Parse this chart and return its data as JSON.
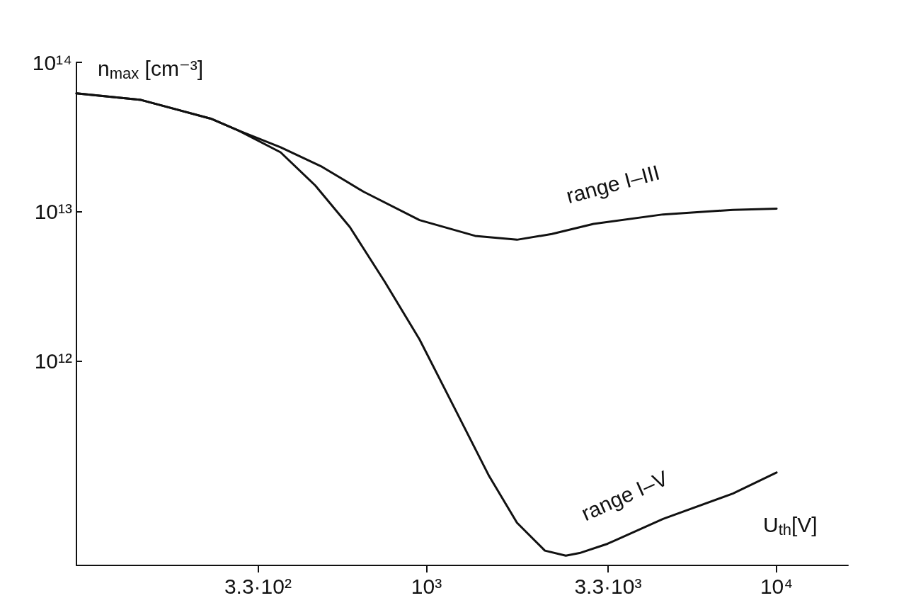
{
  "chart_data": {
    "type": "line",
    "xlabel": "U$_{th}$[V]",
    "ylabel": "n$_{max}$ [cm⁻³]",
    "log": "xy",
    "grid": false,
    "legend": false,
    "marker": "none",
    "line_style": "solid",
    "xlim": [
      100,
      16000
    ],
    "ylim": [
      43000000000.0,
      100000000000000.0
    ],
    "xticks": [
      {
        "value": 330,
        "label": "3.3·10²"
      },
      {
        "value": 1000,
        "label": "10³"
      },
      {
        "value": 3300,
        "label": "3.3·10³"
      },
      {
        "value": 10000,
        "label": "10⁴"
      }
    ],
    "yticks": [
      {
        "value": 1000000000000.0,
        "label": "10¹²"
      },
      {
        "value": 10000000000000.0,
        "label": "10¹³"
      },
      {
        "value": 100000000000000.0,
        "label": "10¹⁴"
      }
    ],
    "series": [
      {
        "name": "range I–III",
        "color": "#111111",
        "x": [
          100,
          153,
          242,
          290,
          383,
          503,
          662,
          955,
          1377,
          1813,
          2280,
          3000,
          4740,
          7500,
          10000
        ],
        "values": [
          62000000000000.0,
          56000000000000.0,
          42000000000000.0,
          35000000000000.0,
          27000000000000.0,
          20000000000000.0,
          13600000000000.0,
          8800000000000.0,
          6900000000000.0,
          6500000000000.0,
          7100000000000.0,
          8300000000000.0,
          9600000000000.0,
          10300000000000.0,
          10500000000000.0
        ]
      },
      {
        "name": "range I–V",
        "color": "#111111",
        "x": [
          100,
          153,
          242,
          290,
          383,
          481,
          604,
          760,
          955,
          1200,
          1510,
          1813,
          2178,
          2500,
          2737,
          3290,
          4740,
          7500,
          10000
        ],
        "values": [
          62000000000000.0,
          56000000000000.0,
          42000000000000.0,
          35000000000000.0,
          25000000000000.0,
          15000000000000.0,
          7900000000000.0,
          3400000000000.0,
          1400000000000.0,
          490000000000.0,
          170000000000.0,
          83000000000.0,
          54000000000.0,
          50000000000.0,
          52000000000.0,
          60000000000.0,
          88000000000.0,
          130000000000.0,
          180000000000.0
        ]
      }
    ]
  }
}
